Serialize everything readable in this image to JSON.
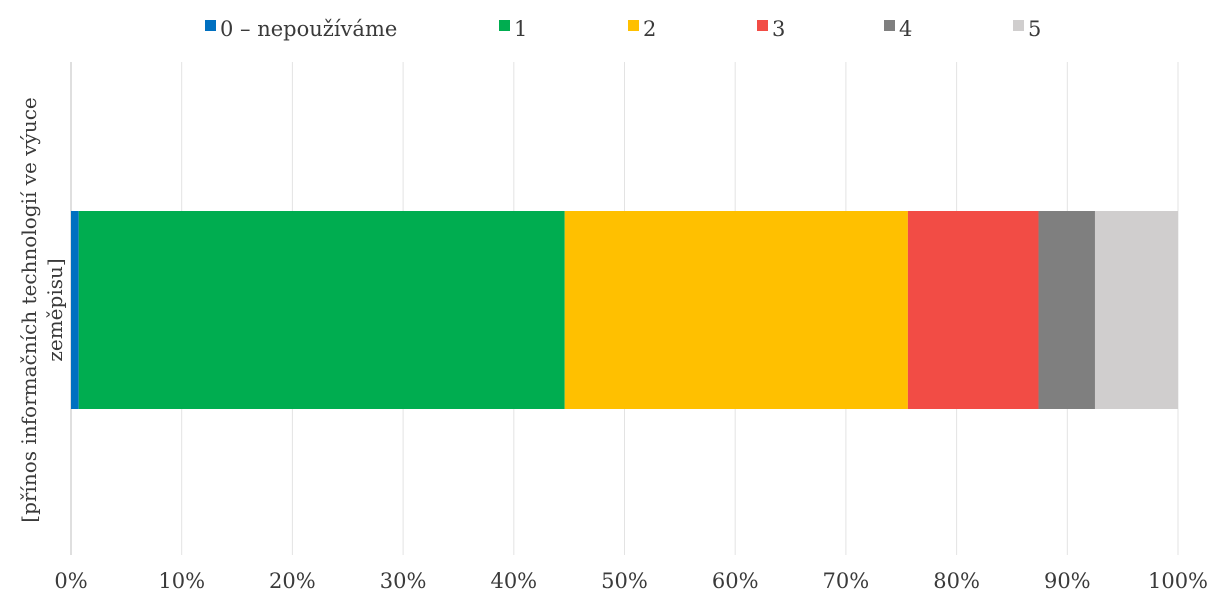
{
  "chart_data": {
    "type": "bar",
    "orientation": "horizontal",
    "stacked": "percent",
    "title": "",
    "xlabel": "",
    "ylabel": "",
    "categories": [
      "[přínos informačních technologií ve výuce zeměpisu]"
    ],
    "category_label_lines": [
      "[přínos informačních technologií ve výuce",
      "zeměpisu]"
    ],
    "series": [
      {
        "name": "0 – nepoužíváme",
        "values": [
          0.7
        ],
        "color": "#0070c0"
      },
      {
        "name": "1",
        "values": [
          43.9
        ],
        "color": "#00ad50"
      },
      {
        "name": "2",
        "values": [
          31.0
        ],
        "color": "#ffc000"
      },
      {
        "name": "3",
        "values": [
          11.8
        ],
        "color": "#f24c45"
      },
      {
        "name": "4",
        "values": [
          5.1
        ],
        "color": "#7f7f7f"
      },
      {
        "name": "5",
        "values": [
          7.5
        ],
        "color": "#d0cece"
      }
    ],
    "xlim": [
      0,
      100
    ],
    "x_ticks": [
      "0%",
      "10%",
      "20%",
      "30%",
      "40%",
      "50%",
      "60%",
      "70%",
      "80%",
      "90%",
      "100%"
    ],
    "grid": true,
    "legend_position": "top"
  }
}
